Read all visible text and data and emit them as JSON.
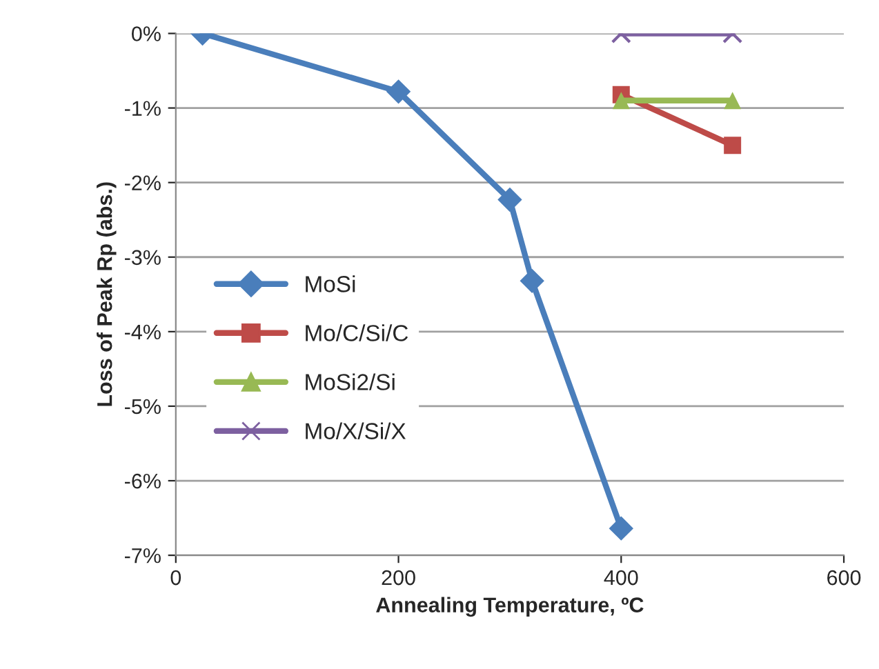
{
  "chart_data": {
    "type": "line",
    "xlabel": "Annealing Temperature, ºC",
    "ylabel": "Loss of Peak Rp (abs.)",
    "xlim": [
      0,
      600
    ],
    "xticks": [
      0,
      200,
      400,
      600
    ],
    "ylim": [
      -7,
      0
    ],
    "yticks": [
      {
        "value": -7,
        "label": "-7%"
      },
      {
        "value": -6,
        "label": "-6%"
      },
      {
        "value": -5,
        "label": "-5%"
      },
      {
        "value": -4,
        "label": "-4%"
      },
      {
        "value": -3,
        "label": "-3%"
      },
      {
        "value": -2,
        "label": "-2%"
      },
      {
        "value": -1,
        "label": "-1%"
      },
      {
        "value": 0,
        "label": "0%"
      }
    ],
    "grid": "y",
    "legend": "left",
    "series": [
      {
        "name": "MoSi",
        "color": "#4a7ebb",
        "marker": "diamond",
        "x": [
          24,
          200,
          300,
          320,
          400
        ],
        "values": [
          0,
          -0.78,
          -2.23,
          -3.32,
          -6.64
        ]
      },
      {
        "name": "Mo/C/Si/C",
        "color": "#be4b48",
        "marker": "square",
        "x": [
          400,
          500
        ],
        "values": [
          -0.82,
          -1.5
        ]
      },
      {
        "name": "MoSi2/Si",
        "color": "#98b954",
        "marker": "triangle",
        "x": [
          400,
          500
        ],
        "values": [
          -0.9,
          -0.9
        ]
      },
      {
        "name": "Mo/X/Si/X",
        "color": "#7d60a0",
        "marker": "cross",
        "x": [
          400,
          500
        ],
        "values": [
          0,
          0
        ]
      }
    ]
  }
}
